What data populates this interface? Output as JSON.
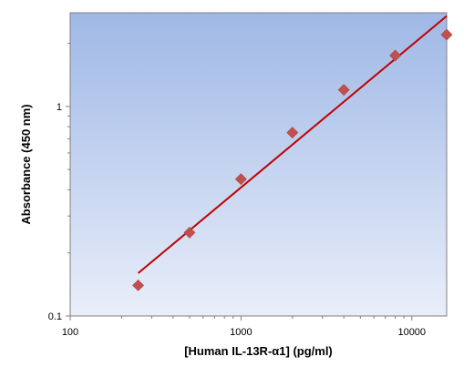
{
  "chart_data": {
    "type": "scatter",
    "title": "",
    "xlabel": "[Human IL-13R-α1] (pg/ml)",
    "ylabel": "Absorbance (450 nm)",
    "x_scale": "log",
    "y_scale": "log",
    "xlim": [
      100,
      16000
    ],
    "ylim": [
      0.1,
      2.8
    ],
    "x_ticks": [
      100,
      1000,
      10000
    ],
    "x_tick_labels": [
      "100",
      "1000",
      "10000"
    ],
    "y_ticks": [
      0.1,
      1
    ],
    "y_tick_labels": [
      "0.1",
      "1"
    ],
    "grid": false,
    "legend": "none",
    "series": [
      {
        "type": "scatter",
        "x": [
          250,
          500,
          1000,
          2000,
          4000,
          8000,
          16000
        ],
        "y": [
          0.14,
          0.25,
          0.45,
          0.75,
          1.2,
          1.75,
          2.2
        ]
      },
      {
        "type": "line",
        "x": [
          250,
          16000
        ],
        "y": [
          0.16,
          2.7
        ]
      }
    ],
    "colors": {
      "marker": "#c0504d",
      "fit_line": "#c00000",
      "plot_bg_top": "#9fb8e6",
      "plot_bg_bottom": "#e9eef9"
    }
  }
}
